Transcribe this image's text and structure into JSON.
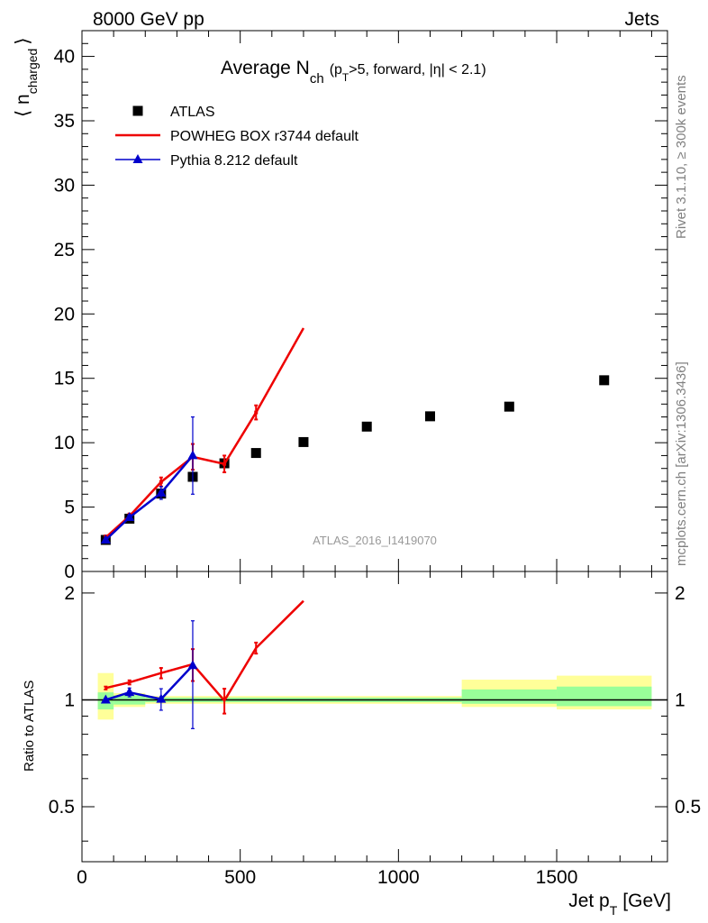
{
  "header": {
    "left": "8000 GeV pp",
    "right": "Jets"
  },
  "side_labels": {
    "rivet": "Rivet 3.1.10, ≥ 300k events",
    "mcplots": "mcplots.cern.ch [arXiv:1306.3436]"
  },
  "chart_data": [
    {
      "type": "scatter",
      "panel": "main",
      "title_main": "Average N",
      "title_sub": "ch",
      "title_cut_a": "(p",
      "title_cut_sub": "T",
      "title_cut_b": ">5, forward, |η| < 2.1)",
      "ylabel": "⟨ n",
      "ylabel_sub": "charged",
      "ylabel_close": "⟩",
      "xlim": [
        0,
        1850
      ],
      "ylim": [
        0,
        42
      ],
      "yticks": [
        0,
        5,
        10,
        15,
        20,
        25,
        30,
        35,
        40
      ],
      "ytick_labels": [
        "0",
        "5",
        "10",
        "15",
        "20",
        "25",
        "30",
        "35",
        "40"
      ],
      "watermark": "ATLAS_2016_I1419070",
      "legend_position": "top-left",
      "series": [
        {
          "name": "ATLAS",
          "style": "markers-square",
          "color": "#000000",
          "x": [
            75,
            150,
            250,
            350,
            450,
            550,
            700,
            900,
            1100,
            1350,
            1650
          ],
          "y": [
            2.45,
            4.1,
            6.05,
            7.35,
            8.4,
            9.2,
            10.05,
            11.25,
            12.05,
            12.8,
            14.85
          ]
        },
        {
          "name": "POWHEG BOX r3744 default",
          "style": "line-errorbars",
          "color": "#ee0000",
          "x": [
            75,
            150,
            250,
            350,
            450,
            550,
            700
          ],
          "y": [
            2.65,
            4.3,
            6.95,
            8.9,
            8.35,
            12.35,
            18.9
          ],
          "yerr": [
            0.15,
            0.2,
            0.35,
            1.0,
            0.65,
            0.55,
            0
          ]
        },
        {
          "name": "Pythia 8.212 default",
          "style": "line-markers-triangle",
          "color": "#0000cc",
          "x": [
            75,
            150,
            250,
            350
          ],
          "y": [
            2.45,
            4.2,
            6.1,
            9.0
          ],
          "yerr": [
            0.05,
            0.2,
            0.5,
            3.0
          ]
        }
      ]
    },
    {
      "type": "scatter",
      "panel": "ratio",
      "ylabel": "Ratio to ATLAS",
      "xlabel": "Jet p",
      "xlabel_sub": "T",
      "xlabel_unit": "[GeV]",
      "xlim": [
        0,
        1850
      ],
      "ylim": [
        0.35,
        2.3
      ],
      "log_y": true,
      "xticks": [
        0,
        500,
        1000,
        1500
      ],
      "xtick_labels": [
        "0",
        "500",
        "1000",
        "1500"
      ],
      "yticks": [
        0.5,
        1,
        2
      ],
      "ytick_labels": [
        "0.5",
        "1",
        "2"
      ],
      "reference_line": 1,
      "uncertainty_bands": [
        {
          "x0": 50,
          "x1": 100,
          "inner": [
            0.94,
            1.05
          ],
          "outer": [
            0.88,
            1.19
          ]
        },
        {
          "x0": 100,
          "x1": 200,
          "inner": [
            0.97,
            1.03
          ],
          "outer": [
            0.955,
            1.045
          ]
        },
        {
          "x0": 200,
          "x1": 1200,
          "inner": [
            0.985,
            1.015
          ],
          "outer": [
            0.975,
            1.025
          ]
        },
        {
          "x0": 1200,
          "x1": 1500,
          "inner": [
            0.975,
            1.07
          ],
          "outer": [
            0.955,
            1.14
          ]
        },
        {
          "x0": 1500,
          "x1": 1800,
          "inner": [
            0.96,
            1.09
          ],
          "outer": [
            0.94,
            1.17
          ]
        }
      ],
      "series": [
        {
          "name": "POWHEG BOX r3744 default",
          "color": "#ee0000",
          "x": [
            75,
            150,
            250,
            350,
            450,
            550,
            700
          ],
          "y": [
            1.08,
            1.12,
            1.19,
            1.26,
            0.995,
            1.4,
            1.9
          ],
          "yerr": [
            0.01,
            0.015,
            0.04,
            0.13,
            0.08,
            0.05,
            0
          ]
        },
        {
          "name": "Pythia 8.212 default",
          "color": "#0000cc",
          "x": [
            75,
            150,
            250,
            350
          ],
          "y": [
            1.0,
            1.05,
            1.005,
            1.25
          ],
          "yerr": [
            0.01,
            0.03,
            0.07,
            0.42
          ]
        }
      ]
    }
  ]
}
